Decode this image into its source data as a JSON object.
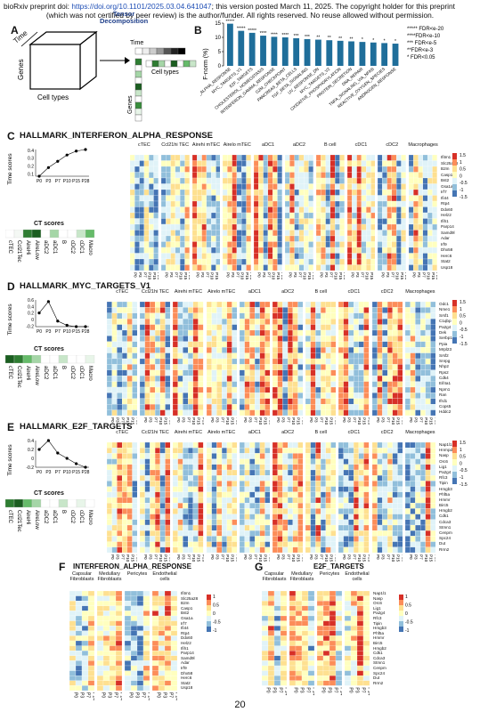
{
  "header": {
    "line1_prefix": "bioRxiv preprint doi: ",
    "doi": "https://doi.org/10.1101/2025.03.04.641047",
    "line1_suffix": "; this version posted March 11, 2025. The copyright holder for this preprint",
    "line2": "(which was not certified by peer review) is the author/funder. All rights reserved. No reuse allowed without permission."
  },
  "panelA": {
    "letter": "A",
    "axis_time": "Time",
    "axis_genes": "Genes",
    "axis_celltypes": "Cell types",
    "tensor_title": "Tensor\nDecomposition",
    "time_label": "Time",
    "genes_label": "Genes",
    "celltypes_label": "Cell types"
  },
  "panelB": {
    "letter": "B",
    "ylabel": "F-norm (%)",
    "ylim": [
      0,
      15
    ],
    "yticks": [
      "0",
      "5",
      "10",
      "15"
    ],
    "legend": [
      "***** FDR<e-20",
      "****FDR<e-10",
      "*** FDR<e-5",
      "**FDR<e-3",
      "* FDR<0.05"
    ],
    "categories": [
      "INTERFERON_ALPHA_RESPONSE",
      "MYC_TARGETS_V1",
      "E2F_TARGETS",
      "CHOLESTEROL_HOMEOSTASIS",
      "INTERFERON_GAMMA_RESPONSE",
      "G2M_CHECKPOINT",
      "PANCREAS_BETA_CELLS",
      "TGF_BETA_SIGNALING",
      "UV_RESPONSE_DN",
      "MYC_TARGETS_V2",
      "OXIDATIVE_PHOSPHORYLATION",
      "PROTEIN_SECRETION",
      "DNA_REPAIR",
      "TNFA_SIGNALING_VIA_NFKB",
      "REACTIVE_OXYGEN_SPECIES",
      "ANDROGEN_RESPONSE"
    ],
    "values": [
      14.8,
      12.3,
      11.6,
      10.6,
      10.2,
      10.0,
      9.7,
      9.4,
      9.2,
      9.0,
      8.8,
      8.6,
      8.4,
      8.2,
      8.0,
      7.8
    ],
    "stars": [
      "*****",
      "*****",
      "*****",
      "****",
      "****",
      "****",
      "***",
      "***",
      "**",
      "**",
      "**",
      "**",
      "*",
      "*",
      "*",
      "*"
    ],
    "color": "#1f6e9a"
  },
  "tp": [
    "P0",
    "P3",
    "P7",
    "P10",
    "P15",
    "P28"
  ],
  "ct": [
    "cTEC",
    "Ccl21Tec",
    "AireHi",
    "AireLow",
    "aDC2",
    "aDC1",
    "B",
    "cDC2",
    "cDC1",
    "Macro"
  ],
  "scale_ticks": [
    "1.5",
    "1",
    "0.5",
    "0",
    "-0.5",
    "-1",
    "-1.5"
  ],
  "panelC": {
    "letter": "C",
    "title": "HALLMARK_INTERFERON_ALPHA_RESPONSE",
    "time_scores_label": "Time scores",
    "ct_scores_label": "CT scores",
    "time_yticks": [
      "0.4",
      "0.3",
      "0.2",
      "0.1"
    ],
    "time_values": [
      0.07,
      0.18,
      0.26,
      0.34,
      0.39,
      0.41
    ],
    "groups": [
      "cTEC",
      "Ccl21hi TEC",
      "Airehi mTEC",
      "Airelo mTEC",
      "aDC1",
      "aDC2",
      "B cell",
      "cDC1",
      "cDC2",
      "Macrophages"
    ],
    "genes": [
      "Ifitm1",
      "Slc25a28",
      "B2m",
      "Casp1",
      "Bst2",
      "Gsa1a",
      "Irf7",
      "Ifi44",
      "Rtp4",
      "Ddx60",
      "Helz2",
      "Ifih1",
      "Parp14",
      "Samd9l",
      "Adar",
      "Irf9",
      "Dhx58",
      "Herc6",
      "Stat2",
      "Usp18"
    ]
  },
  "panelD": {
    "letter": "D",
    "title": "HALLMARK_MYC_TARGETS_V1",
    "time_scores_label": "Time scores",
    "ct_scores_label": "CT scores",
    "time_yticks": [
      "0.6",
      "0.4",
      "0.2",
      "0",
      "-0.2"
    ],
    "time_values": [
      0.2,
      0.55,
      -0.05,
      -0.18,
      -0.22,
      -0.22
    ],
    "groups": [
      "cTEC",
      "Ccl21hi TEC",
      "Airehi mTEC",
      "Airelo mTEC",
      "aDC1",
      "aDC2",
      "B cell",
      "cDC1",
      "cDC2",
      "Macrophages"
    ],
    "genes": [
      "Odc1",
      "Nme1",
      "Srsf1",
      "C1qbp",
      "Pa2g4",
      "Dek",
      "Serbp1",
      "Ppia",
      "Mrpl23",
      "Srsf2",
      "Snrpg",
      "Nhp2",
      "Rps2",
      "Cdk4",
      "Eif4a1",
      "Npm1",
      "Ran",
      "Ifrd1",
      "Cops5",
      "Hddc2"
    ]
  },
  "panelE": {
    "letter": "E",
    "title": "HALLMARK_E2F_TARGETS",
    "time_scores_label": "Time scores",
    "ct_scores_label": "CT scores",
    "time_yticks": [
      "0.4",
      "0.2",
      "0",
      "-0.2"
    ],
    "time_values": [
      0.2,
      0.4,
      0.12,
      0.0,
      -0.12,
      -0.2
    ],
    "groups": [
      "cTEC",
      "Ccl21hi TEC",
      "Airehi mTEC",
      "Airelo mTEC",
      "aDC1",
      "aDC2",
      "B cell",
      "cDC1",
      "cDC2",
      "Macrophages"
    ],
    "genes": [
      "Nap1l1",
      "Hnrnpd",
      "Nasp",
      "Orc6",
      "Lig1",
      "Pa2g4",
      "Rfc3",
      "Tipin",
      "Hmgb3",
      "Phf5a",
      "Hmmr",
      "Birc5",
      "Hmgb2",
      "Cdk1",
      "Cdca3",
      "Stmn1",
      "Cenpm",
      "Spc24",
      "Dut",
      "Rrm2"
    ]
  },
  "panelF": {
    "letter": "F",
    "title": "INTERFERON_ALPHA_RESPONSE",
    "groups": [
      "Capsular Fibroblasts",
      "Medullary Fibroblasts",
      "Pericytes",
      "Endothelial cells"
    ],
    "genes": [
      "Ifitm1",
      "Slc25a28",
      "B2m",
      "Casp1",
      "Bst2",
      "Gsa1a",
      "Irf7",
      "Ifi44",
      "Rtp4",
      "Ddx60",
      "Helz2",
      "Ifih1",
      "Parp14",
      "Samd9l",
      "Adar",
      "Irf9",
      "Dhx58",
      "Herc6",
      "Stat2",
      "Usp18"
    ],
    "scale_ticks": [
      "1",
      "0.5",
      "0",
      "-0.5",
      "-1"
    ],
    "tp": [
      "P0",
      "P3",
      "P7",
      "P14"
    ]
  },
  "panelG": {
    "letter": "G",
    "title": "E2F_TARGETS",
    "groups": [
      "Capsular Fibroblasts",
      "Medullary Fibroblasts",
      "Pericytes",
      "Endothelial cells"
    ],
    "genes": [
      "Nap1l1",
      "Nasp",
      "Orc6",
      "Lig1",
      "Pa2g4",
      "Rfc3",
      "Tipin",
      "Hmgb3",
      "Phf5a",
      "Hmmr",
      "Birc5",
      "Hmgb2",
      "Cdk1",
      "Cdca3",
      "Stmn1",
      "Cenpm",
      "Spc24",
      "Dut",
      "Rrm2"
    ],
    "scale_ticks": [
      "1",
      "0.5",
      "0",
      "-0.5",
      "-1"
    ],
    "tp": [
      "P0",
      "P3",
      "P7",
      "P14"
    ]
  },
  "page_number": "20",
  "colors": {
    "high": "#d73027",
    "midhigh": "#fc8d59",
    "mid": "#fee090",
    "neutral": "#ffffbf",
    "midlow": "#e0f3f8",
    "low": "#91bfdb",
    "lowest": "#4575b4",
    "ctgreen": "#1b7a32"
  }
}
